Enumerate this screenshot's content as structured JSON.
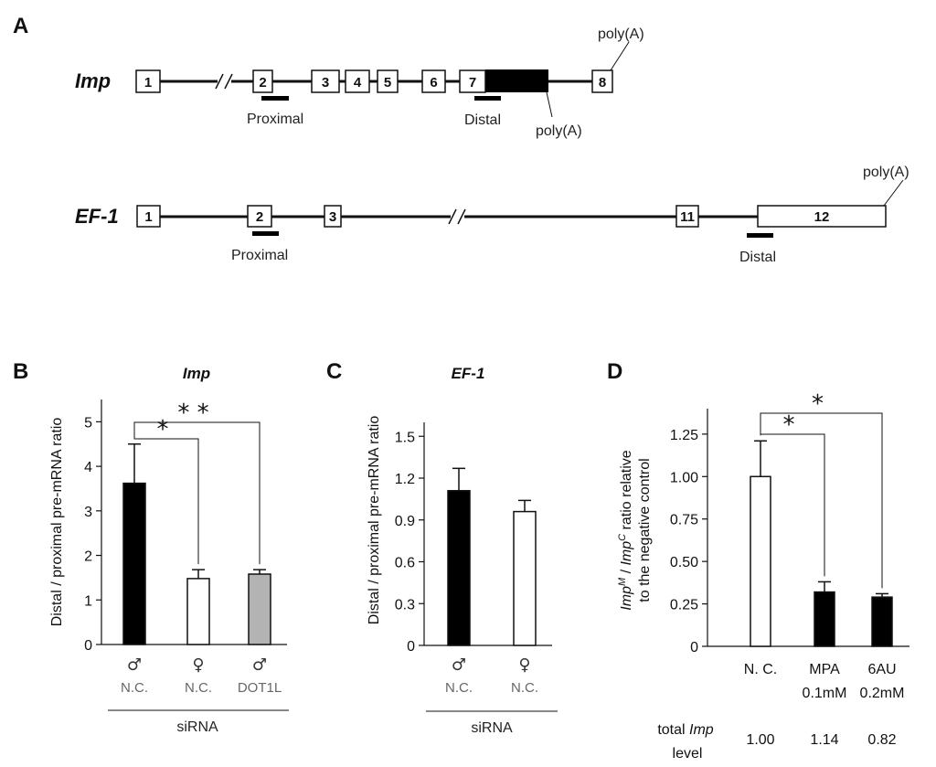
{
  "panel_a": {
    "letter": "A",
    "imp": {
      "gene": "Imp",
      "exons": [
        "1",
        "2",
        "3",
        "4",
        "5",
        "6",
        "7",
        "8"
      ],
      "primer_labels": [
        "Proximal",
        "Distal"
      ],
      "polya_labels": [
        "poly(A)",
        "poly(A)"
      ]
    },
    "ef1": {
      "gene": "EF-1",
      "exons": [
        "1",
        "2",
        "3",
        "11",
        "12"
      ],
      "primer_labels": [
        "Proximal",
        "Distal"
      ],
      "polya_labels": [
        "poly(A)"
      ]
    }
  },
  "chart_data": [
    {
      "panel": "B",
      "type": "bar",
      "title": "Imp",
      "xlabel": "siRNA",
      "ylabel": "Distal / proximal pre-mRNA ratio",
      "ylim": [
        0,
        5.5
      ],
      "yticks": [
        "0",
        "1",
        "2",
        "3",
        "4",
        "5"
      ],
      "ytick_values": [
        0,
        1,
        2,
        3,
        4,
        5
      ],
      "categories": [
        "N.C.",
        "N.C.",
        "DOT1L"
      ],
      "sex": [
        "♂",
        "♀",
        "♂"
      ],
      "values": [
        3.62,
        1.48,
        1.58
      ],
      "errors": [
        0.88,
        0.2,
        0.1
      ],
      "colors": [
        "#000000",
        "#ffffff",
        "#b3b3b3"
      ],
      "significance": [
        {
          "from": 0,
          "to": 1,
          "label": "*"
        },
        {
          "from": 0,
          "to": 2,
          "label": "* *"
        }
      ]
    },
    {
      "panel": "C",
      "type": "bar",
      "title": "EF-1",
      "xlabel": "siRNA",
      "ylabel": "Distal / proximal pre-mRNA ratio",
      "ylim": [
        0,
        1.6
      ],
      "yticks": [
        "0",
        "0.3",
        "0.6",
        "0.9",
        "1.2",
        "1.5"
      ],
      "ytick_values": [
        0,
        0.3,
        0.6,
        0.9,
        1.2,
        1.5
      ],
      "categories": [
        "N.C.",
        "N.C."
      ],
      "sex": [
        "♂",
        "♀"
      ],
      "values": [
        1.11,
        0.96
      ],
      "errors": [
        0.16,
        0.08
      ],
      "colors": [
        "#000000",
        "#ffffff"
      ]
    },
    {
      "panel": "D",
      "type": "bar",
      "title": "",
      "ylabel_parts": [
        "Imp",
        "M",
        " / ",
        "Imp",
        "C",
        " ratio relative"
      ],
      "ylabel_line2": "to the negative control",
      "ylim": [
        0,
        1.4
      ],
      "yticks": [
        "0",
        "0.25",
        "0.50",
        "0.75",
        "1.00",
        "1.25"
      ],
      "ytick_values": [
        0,
        0.25,
        0.5,
        0.75,
        1.0,
        1.25
      ],
      "categories": [
        "N. C.",
        "MPA",
        "6AU"
      ],
      "concentrations": [
        "",
        "0.1mM",
        "0.2mM"
      ],
      "values": [
        1.0,
        0.32,
        0.29
      ],
      "errors": [
        0.21,
        0.06,
        0.02
      ],
      "colors": [
        "#ffffff",
        "#000000",
        "#000000"
      ],
      "significance": [
        {
          "from": 0,
          "to": 1,
          "label": "*"
        },
        {
          "from": 0,
          "to": 2,
          "label": "*"
        }
      ],
      "total_imp_level": {
        "label_parts": [
          "total ",
          "Imp"
        ],
        "label_line2": "level",
        "values": [
          "1.00",
          "1.14",
          "0.82"
        ]
      }
    }
  ]
}
